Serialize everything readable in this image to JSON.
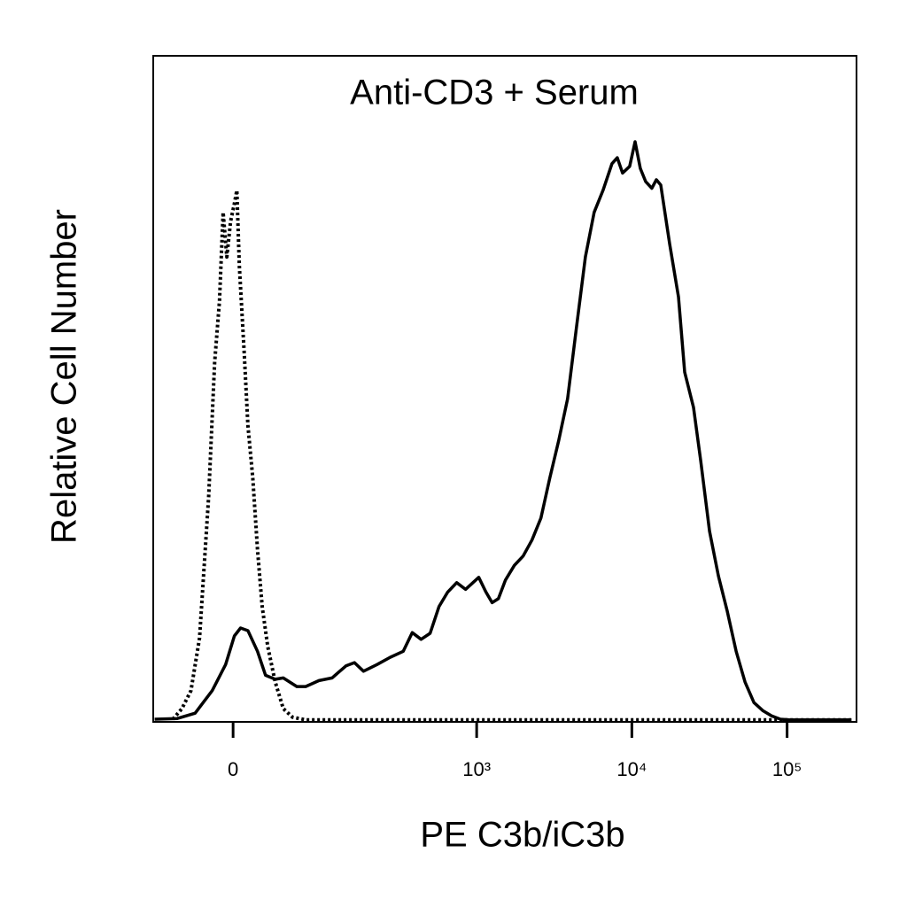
{
  "chart_data": {
    "type": "line",
    "title": "Anti-CD3 + Serum",
    "xlabel": "PE C3b/iC3b",
    "ylabel": "Relative Cell Number",
    "xscale": "biexponential",
    "xlim": [
      -80,
      280000
    ],
    "ylim": [
      0,
      100
    ],
    "xticks": [
      0,
      {
        "value": 1000,
        "label": "10³"
      },
      {
        "value": 10000,
        "label": "10⁴"
      },
      {
        "value": 100000,
        "label": "10⁵"
      }
    ],
    "series": [
      {
        "color": "#000000",
        "line_style": "solid",
        "x": [
          -78,
          -50,
          -32,
          -17,
          -6,
          1,
          6,
          12,
          20,
          27,
          36,
          44,
          59,
          70,
          89,
          111,
          139,
          159,
          183,
          225,
          275,
          335,
          383,
          437,
          500,
          571,
          651,
          743,
          848,
          1032,
          1148,
          1258,
          1381,
          1534,
          1750,
          1993,
          2273,
          2597,
          2959,
          3375,
          3856,
          4396,
          5017,
          5719,
          6523,
          7441,
          8057,
          8716,
          9688,
          10487,
          11340,
          12274,
          13451,
          14369,
          15347,
          17518,
          19975,
          21897,
          24980,
          27756,
          31671,
          36110,
          41202,
          46980,
          53568,
          61128,
          69660,
          79488,
          90558,
          103356,
          259632
        ],
        "values": [
          0.4,
          0.5,
          1.3,
          4.7,
          8.6,
          12.9,
          14.1,
          13.7,
          10.6,
          7.0,
          6.4,
          6.6,
          5.3,
          5.3,
          6.2,
          6.6,
          8.4,
          8.9,
          7.6,
          8.6,
          9.7,
          10.6,
          13.4,
          12.4,
          13.3,
          17.3,
          19.5,
          20.9,
          19.9,
          21.7,
          19.5,
          17.9,
          18.5,
          21.3,
          23.5,
          24.9,
          27.3,
          30.6,
          36.6,
          42.2,
          48.5,
          59.2,
          69.8,
          76.5,
          79.8,
          83.8,
          84.7,
          82.4,
          83.4,
          87.1,
          83.1,
          81.1,
          80.1,
          81.4,
          80.6,
          71.8,
          63.8,
          52.5,
          47.2,
          39.2,
          28.6,
          21.9,
          16.6,
          10.6,
          6.0,
          2.9,
          1.7,
          0.9,
          0.4,
          0.3,
          0.3
        ]
      },
      {
        "color": "#000000",
        "line_style": "dotted",
        "x": [
          -55,
          -45,
          -36,
          -28,
          -20,
          -15,
          -11,
          -8,
          -5,
          -2,
          1,
          3,
          5,
          9,
          12,
          16,
          20,
          24,
          29,
          36,
          44,
          54,
          70,
          259632
        ],
        "values": [
          0.4,
          2.0,
          4.7,
          12.6,
          33.9,
          53.9,
          63.2,
          76.5,
          69.8,
          75.1,
          77.8,
          79.8,
          68.5,
          55.2,
          44.5,
          36.6,
          25.9,
          17.3,
          11.3,
          6.0,
          2.0,
          0.7,
          0.3,
          0.3
        ]
      }
    ]
  }
}
